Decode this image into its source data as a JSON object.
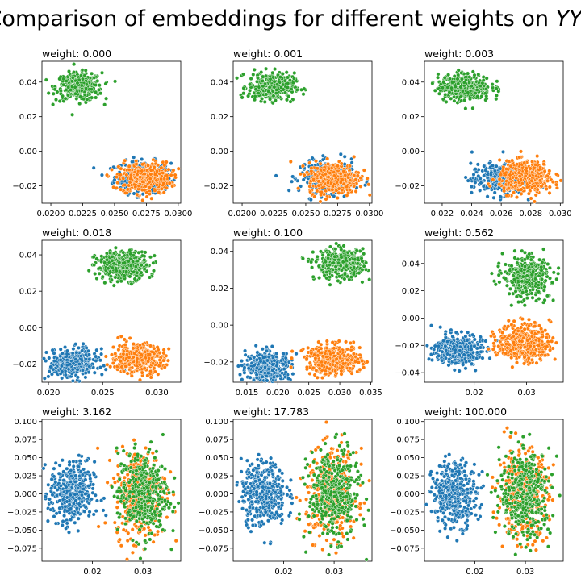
{
  "figure": {
    "title_prefix": "Comparison of embeddings for different weights on ",
    "title_math": "YY",
    "title_sup": "⊤"
  },
  "colors": {
    "blue": "#1f77b4",
    "orange": "#ff7f0e",
    "green": "#2ca02c"
  },
  "chart_data": [
    {
      "type": "scatter",
      "title": "weight: 0.000",
      "xlim": [
        0.0193,
        0.0302
      ],
      "ylim": [
        -0.03,
        0.052
      ],
      "xticks": [
        0.02,
        0.0225,
        0.025,
        0.0275,
        0.03
      ],
      "xtick_labels": [
        "0.0200",
        "0.0225",
        "0.0250",
        "0.0275",
        "0.0300"
      ],
      "yticks": [
        -0.02,
        0.0,
        0.02,
        0.04
      ],
      "ytick_labels": [
        "−0.02",
        "0.00",
        "0.02",
        "0.04"
      ],
      "clusters": [
        {
          "color": "blue",
          "cx": 0.0272,
          "cy": -0.0148,
          "sx": 0.0011,
          "sy": 0.0045,
          "n": 300
        },
        {
          "color": "green",
          "cx": 0.0222,
          "cy": 0.0372,
          "sx": 0.0009,
          "sy": 0.004,
          "n": 320
        },
        {
          "color": "orange",
          "cx": 0.0274,
          "cy": -0.0155,
          "sx": 0.001,
          "sy": 0.0045,
          "n": 400
        }
      ]
    },
    {
      "type": "scatter",
      "title": "weight: 0.001",
      "xlim": [
        0.0193,
        0.0302
      ],
      "ylim": [
        -0.03,
        0.052
      ],
      "xticks": [
        0.02,
        0.0225,
        0.025,
        0.0275,
        0.03
      ],
      "xtick_labels": [
        "0.0200",
        "0.0225",
        "0.0250",
        "0.0275",
        "0.0300"
      ],
      "yticks": [
        -0.02,
        0.0,
        0.02,
        0.04
      ],
      "ytick_labels": [
        "−0.02",
        "0.00",
        "0.02",
        "0.04"
      ],
      "clusters": [
        {
          "color": "blue",
          "cx": 0.0268,
          "cy": -0.0148,
          "sx": 0.0011,
          "sy": 0.0045,
          "n": 300
        },
        {
          "color": "green",
          "cx": 0.0223,
          "cy": 0.0372,
          "sx": 0.0009,
          "sy": 0.004,
          "n": 320
        },
        {
          "color": "orange",
          "cx": 0.0272,
          "cy": -0.0155,
          "sx": 0.001,
          "sy": 0.0045,
          "n": 400
        }
      ]
    },
    {
      "type": "scatter",
      "title": "weight: 0.003",
      "xlim": [
        0.0208,
        0.0302
      ],
      "ylim": [
        -0.03,
        0.052
      ],
      "xticks": [
        0.022,
        0.024,
        0.026,
        0.028,
        0.03
      ],
      "xtick_labels": [
        "0.022",
        "0.024",
        "0.026",
        "0.028",
        "0.030"
      ],
      "yticks": [
        -0.02,
        0.0,
        0.02,
        0.04
      ],
      "ytick_labels": [
        "−0.02",
        "0.00",
        "0.02",
        "0.04"
      ],
      "clusters": [
        {
          "color": "blue",
          "cx": 0.0258,
          "cy": -0.0165,
          "sx": 0.0009,
          "sy": 0.0045,
          "n": 300
        },
        {
          "color": "green",
          "cx": 0.0235,
          "cy": 0.037,
          "sx": 0.0009,
          "sy": 0.004,
          "n": 320
        },
        {
          "color": "orange",
          "cx": 0.0277,
          "cy": -0.015,
          "sx": 0.0009,
          "sy": 0.0045,
          "n": 400
        }
      ]
    },
    {
      "type": "scatter",
      "title": "weight: 0.018",
      "xlim": [
        0.0194,
        0.0322
      ],
      "ylim": [
        -0.03,
        0.048
      ],
      "xticks": [
        0.02,
        0.025,
        0.03
      ],
      "xtick_labels": [
        "0.020",
        "0.025",
        "0.030"
      ],
      "yticks": [
        -0.02,
        0.0,
        0.02,
        0.04
      ],
      "ytick_labels": [
        "−0.02",
        "0.00",
        "0.02",
        "0.04"
      ],
      "clusters": [
        {
          "color": "blue",
          "cx": 0.0223,
          "cy": -0.02,
          "sx": 0.0011,
          "sy": 0.004,
          "n": 380
        },
        {
          "color": "green",
          "cx": 0.0268,
          "cy": 0.034,
          "sx": 0.0012,
          "sy": 0.004,
          "n": 380
        },
        {
          "color": "orange",
          "cx": 0.0282,
          "cy": -0.017,
          "sx": 0.0012,
          "sy": 0.004,
          "n": 380
        }
      ]
    },
    {
      "type": "scatter",
      "title": "weight: 0.100",
      "xlim": [
        0.0128,
        0.0352
      ],
      "ylim": [
        -0.031,
        0.046
      ],
      "xticks": [
        0.015,
        0.02,
        0.025,
        0.03,
        0.035
      ],
      "xtick_labels": [
        "0.015",
        "0.020",
        "0.025",
        "0.030",
        "0.035"
      ],
      "yticks": [
        -0.02,
        0.0,
        0.02,
        0.04
      ],
      "ytick_labels": [
        "−0.02",
        "0.00",
        "0.02",
        "0.04"
      ],
      "clusters": [
        {
          "color": "blue",
          "cx": 0.0185,
          "cy": -0.0225,
          "sx": 0.0018,
          "sy": 0.004,
          "n": 380
        },
        {
          "color": "green",
          "cx": 0.03,
          "cy": 0.033,
          "sx": 0.002,
          "sy": 0.004,
          "n": 380
        },
        {
          "color": "orange",
          "cx": 0.029,
          "cy": -0.019,
          "sx": 0.0022,
          "sy": 0.004,
          "n": 380
        }
      ]
    },
    {
      "type": "scatter",
      "title": "weight: 0.562",
      "xlim": [
        0.0105,
        0.037
      ],
      "ylim": [
        -0.047,
        0.057
      ],
      "xticks": [
        0.02,
        0.03
      ],
      "xtick_labels": [
        "0.02",
        "0.03"
      ],
      "yticks": [
        -0.04,
        -0.02,
        0.0,
        0.02,
        0.04
      ],
      "ytick_labels": [
        "−0.04",
        "−0.02",
        "0.00",
        "0.02",
        "0.04"
      ],
      "clusters": [
        {
          "color": "blue",
          "cx": 0.017,
          "cy": -0.023,
          "sx": 0.0022,
          "sy": 0.0055,
          "n": 380
        },
        {
          "color": "green",
          "cx": 0.03,
          "cy": 0.03,
          "sx": 0.0022,
          "sy": 0.0075,
          "n": 380
        },
        {
          "color": "orange",
          "cx": 0.0295,
          "cy": -0.018,
          "sx": 0.0025,
          "sy": 0.007,
          "n": 380
        }
      ]
    },
    {
      "type": "scatter",
      "title": "weight: 3.162",
      "xlim": [
        0.01,
        0.0375
      ],
      "ylim": [
        -0.093,
        0.103
      ],
      "xticks": [
        0.02,
        0.03
      ],
      "xtick_labels": [
        "0.02",
        "0.03"
      ],
      "yticks": [
        -0.075,
        -0.05,
        -0.025,
        0.0,
        0.025,
        0.05,
        0.075,
        0.1
      ],
      "ytick_labels": [
        "−0.075",
        "−0.050",
        "−0.025",
        "0.000",
        "0.025",
        "0.050",
        "0.075",
        "0.100"
      ],
      "clusters": [
        {
          "color": "blue",
          "cx": 0.016,
          "cy": 0.0,
          "sx": 0.0022,
          "sy": 0.022,
          "n": 380
        },
        {
          "color": "orange",
          "cx": 0.0295,
          "cy": 0.0,
          "sx": 0.0025,
          "sy": 0.03,
          "n": 380
        },
        {
          "color": "green",
          "cx": 0.03,
          "cy": 0.0,
          "sx": 0.0025,
          "sy": 0.03,
          "n": 380
        }
      ]
    },
    {
      "type": "scatter",
      "title": "weight: 17.783",
      "xlim": [
        0.01,
        0.0375
      ],
      "ylim": [
        -0.093,
        0.103
      ],
      "xticks": [
        0.02,
        0.03
      ],
      "xtick_labels": [
        "0.02",
        "0.03"
      ],
      "yticks": [
        -0.075,
        -0.05,
        -0.025,
        0.0,
        0.025,
        0.05,
        0.075,
        0.1
      ],
      "ytick_labels": [
        "−0.075",
        "−0.050",
        "−0.025",
        "0.000",
        "0.025",
        "0.050",
        "0.075",
        "0.100"
      ],
      "clusters": [
        {
          "color": "blue",
          "cx": 0.016,
          "cy": 0.0,
          "sx": 0.0022,
          "sy": 0.022,
          "n": 380
        },
        {
          "color": "orange",
          "cx": 0.0295,
          "cy": 0.0,
          "sx": 0.0025,
          "sy": 0.03,
          "n": 380
        },
        {
          "color": "green",
          "cx": 0.03,
          "cy": 0.0,
          "sx": 0.0025,
          "sy": 0.03,
          "n": 380
        }
      ]
    },
    {
      "type": "scatter",
      "title": "weight: 100.000",
      "xlim": [
        0.01,
        0.0375
      ],
      "ylim": [
        -0.093,
        0.103
      ],
      "xticks": [
        0.02,
        0.03
      ],
      "xtick_labels": [
        "0.02",
        "0.03"
      ],
      "yticks": [
        -0.075,
        -0.05,
        -0.025,
        0.0,
        0.025,
        0.05,
        0.075,
        0.1
      ],
      "ytick_labels": [
        "−0.075",
        "−0.050",
        "−0.025",
        "0.000",
        "0.025",
        "0.050",
        "0.075",
        "0.100"
      ],
      "clusters": [
        {
          "color": "blue",
          "cx": 0.016,
          "cy": 0.0,
          "sx": 0.0022,
          "sy": 0.022,
          "n": 380
        },
        {
          "color": "orange",
          "cx": 0.0295,
          "cy": 0.0,
          "sx": 0.0025,
          "sy": 0.03,
          "n": 380
        },
        {
          "color": "green",
          "cx": 0.03,
          "cy": 0.0,
          "sx": 0.0025,
          "sy": 0.03,
          "n": 380
        }
      ]
    }
  ]
}
